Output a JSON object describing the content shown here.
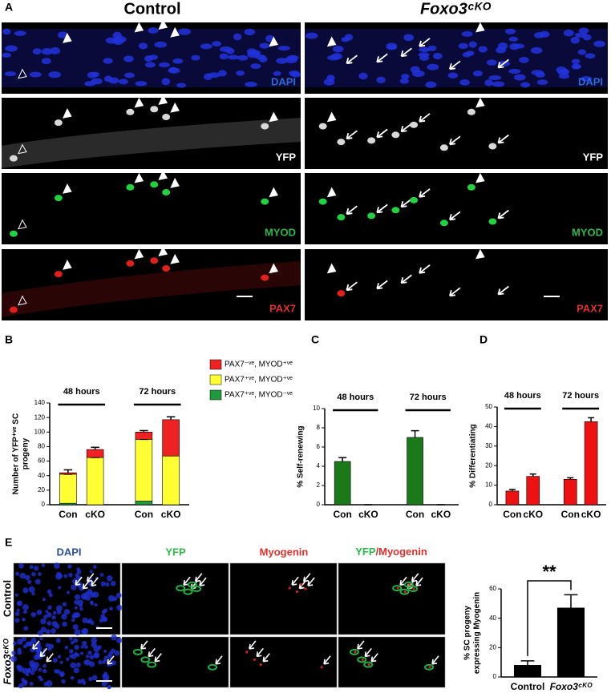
{
  "figure": {
    "panel_labels": [
      "A",
      "B",
      "C",
      "D",
      "E"
    ],
    "panel_a": {
      "col_titles": [
        "Control",
        "Foxo3ᶜᴷᴼ"
      ],
      "channels": [
        "DAPI",
        "YFP",
        "MYOD",
        "PAX7"
      ]
    },
    "panel_e": {
      "col_labels": [
        "DAPI",
        "YFP",
        "Myogenin"
      ],
      "merge_label": [
        "YFP",
        "/Myogenin"
      ],
      "row_labels": [
        "Control",
        "Foxo3ᶜᴷᴼ"
      ]
    }
  },
  "chart_data": [
    {
      "type": "bar",
      "stacked": true,
      "ylabel": [
        "Number of YFP⁺ᵛᵉ SC",
        "progeny"
      ],
      "categories": [
        "Con",
        "cKO",
        "Con",
        "cKO"
      ],
      "groups": [
        "48 hours",
        "72 hours"
      ],
      "series": [
        {
          "name": "PAX7⁺ᵛᵉ, MYOD⁻ᵛᵉ",
          "color": "#1f9a3c",
          "values": [
            2,
            0,
            5,
            0
          ]
        },
        {
          "name": "PAX7⁺ᵛᵉ, MYOD⁺ᵛᵉ",
          "color": "#ffff33",
          "values": [
            40,
            65,
            85,
            67
          ],
          "errors": [
            0,
            0,
            0,
            2
          ]
        },
        {
          "name": "PAX7⁻ᵛᵉ, MYOD⁺ᵛᵉ",
          "color": "#ee2222",
          "values": [
            2,
            11,
            10,
            50
          ],
          "errors": [
            4,
            3,
            2,
            4
          ]
        }
      ],
      "ylim": [
        0,
        140
      ],
      "yticks": [
        0,
        20,
        40,
        60,
        80,
        100,
        120,
        140
      ],
      "legend": "top-right"
    },
    {
      "type": "bar",
      "ylabel": [
        "% Self-renewing"
      ],
      "categories": [
        "Con",
        "cKO",
        "Con",
        "cKO"
      ],
      "groups": [
        "48 hours",
        "72 hours"
      ],
      "values": [
        4.5,
        0,
        7,
        0
      ],
      "errors": [
        0.4,
        0,
        0.7,
        0
      ],
      "color": "#1a7a1a",
      "ylim": [
        0,
        10
      ],
      "yticks": [
        0,
        2,
        4,
        6,
        8,
        10
      ]
    },
    {
      "type": "bar",
      "ylabel": [
        "% Differentiating"
      ],
      "categories": [
        "Con",
        "cKO",
        "Con",
        "cKO"
      ],
      "groups": [
        "48 hours",
        "72 hours"
      ],
      "values": [
        7,
        14.5,
        13,
        42.5
      ],
      "errors": [
        0.8,
        1.2,
        0.8,
        2
      ],
      "color": "#ee1111",
      "ylim": [
        0,
        50
      ],
      "yticks": [
        0,
        10,
        20,
        30,
        40,
        50
      ]
    },
    {
      "type": "bar",
      "ylabel": [
        "% SC progeny",
        "expressing Myogenin"
      ],
      "categories": [
        "Control",
        "Foxo3ᶜᴷᴼ"
      ],
      "values": [
        8,
        47
      ],
      "errors": [
        3,
        9
      ],
      "color": "#000000",
      "significance": "**",
      "ylim": [
        0,
        60
      ],
      "yticks": [
        0,
        20,
        40,
        60
      ]
    }
  ]
}
